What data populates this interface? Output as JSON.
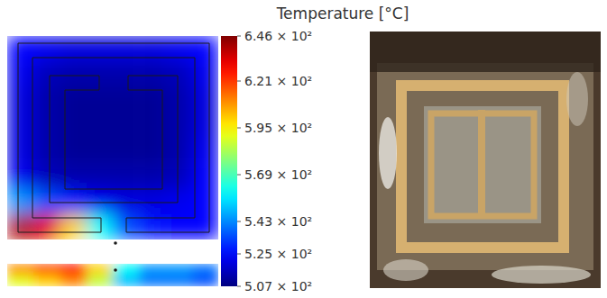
{
  "chart_data": {
    "type": "heatmap",
    "title": "Temperature [°C]",
    "cells": [
      [
        525,
        522,
        520,
        520,
        520,
        520,
        522,
        525
      ],
      [
        522,
        515,
        513,
        513,
        513,
        513,
        515,
        522
      ],
      [
        520,
        513,
        510,
        510,
        510,
        510,
        513,
        520
      ],
      [
        520,
        513,
        510,
        510,
        510,
        510,
        513,
        520
      ],
      [
        520,
        513,
        510,
        510,
        510,
        510,
        513,
        522
      ],
      [
        522,
        515,
        513,
        513,
        513,
        513,
        515,
        524
      ],
      [
        545,
        535,
        528,
        522,
        520,
        520,
        522,
        525
      ],
      [
        640,
        632,
        600,
        560,
        535,
        527,
        525,
        525
      ]
    ],
    "cells_lower": [
      [
        610,
        620,
        628,
        600,
        560,
        545,
        545,
        540
      ],
      [
        590,
        600,
        610,
        585,
        550,
        540,
        540,
        535
      ]
    ],
    "colorbar_range": [
      507,
      646
    ],
    "colorbar_ticks": [
      {
        "value": 646,
        "label": "6.46 × 10²"
      },
      {
        "value": 621,
        "label": "6.21 × 10²"
      },
      {
        "value": 595,
        "label": "5.95 × 10²"
      },
      {
        "value": 569,
        "label": "5.69 × 10²"
      },
      {
        "value": 543,
        "label": "5.43 × 10²"
      },
      {
        "value": 525,
        "label": "5.25 × 10²"
      },
      {
        "value": 507,
        "label": "5.07 × 10²"
      }
    ]
  }
}
